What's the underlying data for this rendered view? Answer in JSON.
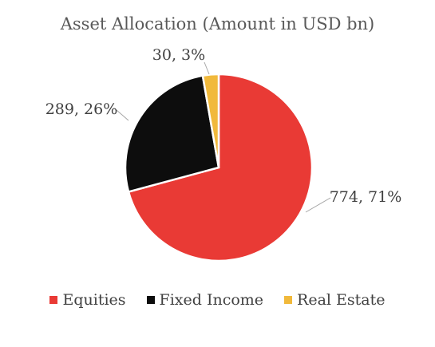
{
  "chart_data": {
    "type": "pie",
    "title": "Asset Allocation (Amount in USD bn)",
    "categories": [
      "Equities",
      "Fixed Income",
      "Real Estate"
    ],
    "values": [
      774,
      289,
      30
    ],
    "percentages": [
      71,
      26,
      3
    ],
    "data_labels": [
      "774, 71%",
      "289, 26%",
      "30, 3%"
    ],
    "colors": [
      "#E93A35",
      "#0D0D0D",
      "#F1B93B"
    ],
    "legend_position": "bottom",
    "start": "top, clockwise"
  }
}
